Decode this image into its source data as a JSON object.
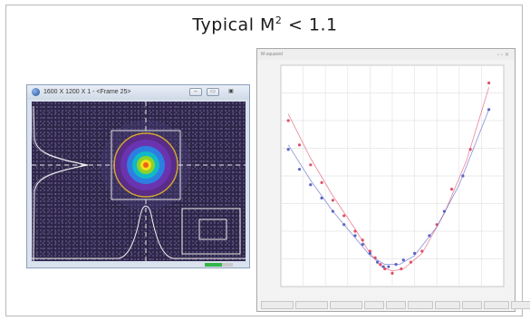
{
  "headline": {
    "prefix": "Typical M",
    "sup": "2",
    "suffix": " < 1.1"
  },
  "beam_window": {
    "title": "1600 X 1200 X 1 - <Frame 25>",
    "buttons": [
      "minimize",
      "restore",
      "close"
    ],
    "progress": 0.6,
    "colors": {
      "background": "#2e2748",
      "crosshair": "#e6e6e6",
      "circle": "#d6a43a",
      "profile": "#f2f2f2"
    }
  },
  "plot_window": {
    "title": "M-squared",
    "status_fields": [
      "",
      "",
      "",
      "",
      "",
      "",
      "",
      "",
      "",
      ""
    ]
  },
  "chart_data": {
    "type": "scatter",
    "title": "",
    "xlabel": "",
    "ylabel": "",
    "xlim": [
      0,
      30
    ],
    "ylim": [
      0,
      100
    ],
    "grid": true,
    "series": [
      {
        "color": "#e0506a",
        "x": [
          1,
          2.5,
          4,
          5.5,
          7,
          8.5,
          10,
          11,
          12,
          12.7,
          13.4,
          14,
          15,
          16.2,
          17.5,
          19,
          21,
          23,
          25.5,
          28
        ],
        "y": [
          75,
          64,
          55,
          47,
          39,
          32,
          25,
          21,
          16,
          13,
          10,
          8,
          6,
          8,
          11,
          16,
          28,
          44,
          62,
          92
        ],
        "fit_x": [
          1,
          4,
          7,
          10,
          12,
          13.5,
          15,
          16.5,
          19,
          22,
          25,
          28
        ],
        "fit_y": [
          78,
          58,
          41,
          26,
          15,
          9,
          7,
          8,
          15,
          33,
          57,
          90
        ]
      },
      {
        "color": "#5a63c4",
        "x": [
          1,
          2.5,
          4,
          5.5,
          7,
          8.5,
          10,
          11,
          12,
          13,
          13.8,
          14.5,
          15.5,
          16.5,
          18,
          20,
          22,
          24.5,
          28
        ],
        "y": [
          62,
          53,
          46,
          40,
          34,
          28,
          23,
          19,
          15,
          11,
          9,
          9,
          10,
          12,
          15,
          23,
          34,
          50,
          80
        ],
        "fit_x": [
          1,
          4,
          7,
          10,
          12,
          14,
          16,
          18,
          21,
          24,
          28
        ],
        "fit_y": [
          64,
          48,
          34,
          22,
          14,
          10,
          10,
          14,
          27,
          46,
          80
        ]
      }
    ]
  }
}
